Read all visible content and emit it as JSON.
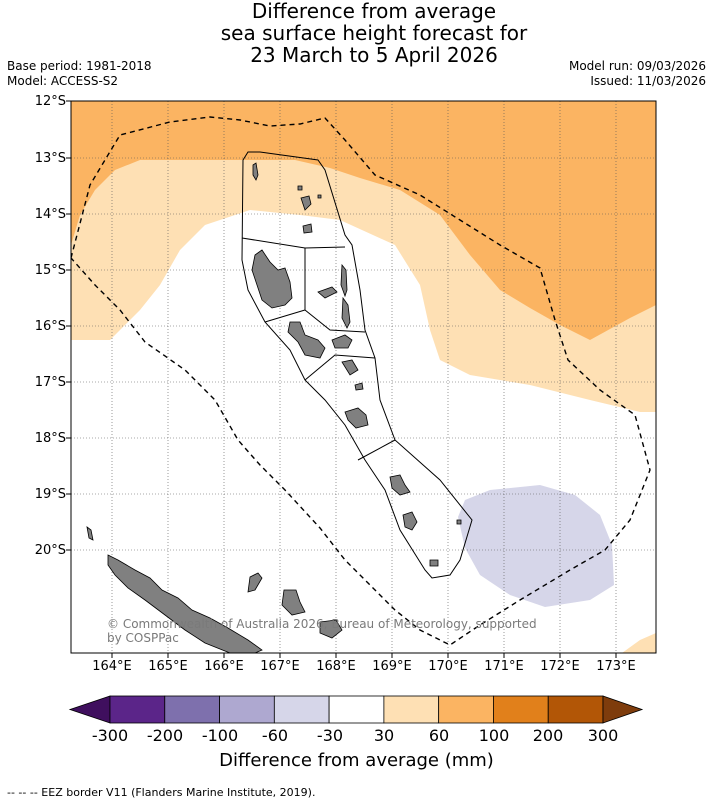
{
  "title": {
    "line1": "Difference from average",
    "line2": "sea surface height forecast for",
    "line3": "23 March to 5 April 2026"
  },
  "meta_left": {
    "base_period": "Base period: 1981-2018",
    "model": "Model: ACCESS-S2"
  },
  "meta_right": {
    "model_run": "Model run: 09/03/2026",
    "issued": "Issued: 11/03/2026"
  },
  "lat_labels": [
    "12°S",
    "13°S",
    "14°S",
    "15°S",
    "16°S",
    "17°S",
    "18°S",
    "19°S",
    "20°S"
  ],
  "lon_labels": [
    "164°E",
    "165°E",
    "166°E",
    "167°E",
    "168°E",
    "169°E",
    "170°E",
    "171°E",
    "172°E",
    "173°E"
  ],
  "copyright": "© Commonwealth of Australia 2026, Bureau of Meteorology, supported by COSPPac",
  "colorbar": {
    "ticks": [
      "-300",
      "-200",
      "-100",
      "-60",
      "-30",
      "30",
      "60",
      "100",
      "200",
      "300"
    ],
    "colors": [
      "#3f0f5e",
      "#5b2589",
      "#7e70ad",
      "#aea8d0",
      "#d6d6e9",
      "#ffffff",
      "#fee0b4",
      "#fbb462",
      "#e1801b",
      "#b25606",
      "#7e3c0c"
    ],
    "title": "Difference from average (mm)"
  },
  "footnote": "-- -- -- EEZ border V11 (Flanders Marine Institute, 2019).",
  "map_colors": {
    "band_30_60": "#fee0b4",
    "band_60_100": "#fbb462",
    "band_neg_30_60": "#d6d6e9",
    "land": "#808080"
  }
}
